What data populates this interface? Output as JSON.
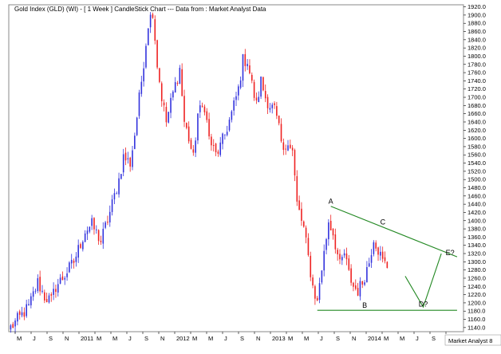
{
  "chart_data": {
    "type": "candlestick",
    "title": "Gold Index (GLD) (WI) -  [ 1 Week ] CandleStick Chart --- Data from : Market Analyst Data",
    "credit": "Market Analyst 8",
    "ylim": [
      1130,
      1925
    ],
    "y_ticks": [
      1140,
      1160,
      1180,
      1200,
      1220,
      1240,
      1260,
      1280,
      1300,
      1320,
      1340,
      1360,
      1380,
      1400,
      1420,
      1440,
      1460,
      1480,
      1500,
      1520,
      1540,
      1560,
      1580,
      1600,
      1620,
      1640,
      1660,
      1680,
      1700,
      1720,
      1740,
      1760,
      1780,
      1800,
      1820,
      1840,
      1860,
      1880,
      1900,
      1920
    ],
    "y_tick_labels": [
      "1140.0",
      "1160.0",
      "1180.0",
      "1200.0",
      "1220.0",
      "1240.0",
      "1260.0",
      "1280.0",
      "1300.0",
      "1320.0",
      "1340.0",
      "1360.0",
      "1380.0",
      "1400.0",
      "1420.0",
      "1440.0",
      "1460.0",
      "1480.0",
      "1500.0",
      "1520.0",
      "1540.0",
      "1560.0",
      "1580.0",
      "1600.0",
      "1620.0",
      "1640.0",
      "1660.0",
      "1680.0",
      "1700.0",
      "1720.0",
      "1740.0",
      "1760.0",
      "1780.0",
      "1800.0",
      "1820.0",
      "1840.0",
      "1860.0",
      "1880.0",
      "1900.0",
      "1920.0"
    ],
    "x_tick_labels": [
      "M",
      "J",
      "S",
      "N",
      "2011",
      "M",
      "M",
      "J",
      "S",
      "N",
      "2012",
      "M",
      "M",
      "J",
      "S",
      "N",
      "2013",
      "M",
      "M",
      "J",
      "S",
      "N",
      "2014",
      "M",
      "M",
      "J",
      "S",
      "N"
    ],
    "colors": {
      "up": "#3333dd",
      "down": "#ee2222",
      "trend": "#228822"
    },
    "price_path": [
      [
        0,
        1140
      ],
      [
        8,
        1190
      ],
      [
        12,
        1250
      ],
      [
        15,
        1215
      ],
      [
        18,
        1205
      ],
      [
        20,
        1240
      ],
      [
        23,
        1260
      ],
      [
        28,
        1300
      ],
      [
        33,
        1375
      ],
      [
        36,
        1390
      ],
      [
        40,
        1350
      ],
      [
        44,
        1420
      ],
      [
        48,
        1500
      ],
      [
        50,
        1555
      ],
      [
        53,
        1540
      ],
      [
        55,
        1610
      ],
      [
        58,
        1740
      ],
      [
        61,
        1880
      ],
      [
        63,
        1910
      ],
      [
        65,
        1780
      ],
      [
        67,
        1700
      ],
      [
        69,
        1640
      ],
      [
        72,
        1710
      ],
      [
        75,
        1770
      ],
      [
        77,
        1640
      ],
      [
        79,
        1600
      ],
      [
        81,
        1550
      ],
      [
        83,
        1660
      ],
      [
        86,
        1680
      ],
      [
        88,
        1600
      ],
      [
        91,
        1560
      ],
      [
        93,
        1580
      ],
      [
        95,
        1610
      ],
      [
        98,
        1660
      ],
      [
        101,
        1720
      ],
      [
        103,
        1790
      ],
      [
        105,
        1790
      ],
      [
        107,
        1730
      ],
      [
        109,
        1680
      ],
      [
        111,
        1740
      ],
      [
        113,
        1700
      ],
      [
        115,
        1680
      ],
      [
        117,
        1670
      ],
      [
        119,
        1620
      ],
      [
        121,
        1560
      ],
      [
        123,
        1600
      ],
      [
        125,
        1570
      ],
      [
        127,
        1440
      ],
      [
        130,
        1380
      ],
      [
        132,
        1310
      ],
      [
        134,
        1240
      ],
      [
        136,
        1200
      ],
      [
        137,
        1250
      ],
      [
        139,
        1320
      ],
      [
        141,
        1400
      ],
      [
        143,
        1370
      ],
      [
        146,
        1290
      ],
      [
        148,
        1320
      ],
      [
        150,
        1270
      ],
      [
        152,
        1240
      ],
      [
        154,
        1230
      ],
      [
        156,
        1250
      ],
      [
        159,
        1300
      ],
      [
        161,
        1360
      ],
      [
        163,
        1330
      ],
      [
        165,
        1300
      ],
      [
        167,
        1290
      ]
    ],
    "annotations": [
      {
        "label": "A",
        "x": 142,
        "y": 1435
      },
      {
        "label": "B",
        "x": 157,
        "y": 1182
      },
      {
        "label": "C",
        "x": 165,
        "y": 1385
      },
      {
        "label": "D?",
        "x": 182,
        "y": 1185
      },
      {
        "label": "E?",
        "x": 194,
        "y": 1310
      }
    ],
    "trendlines": [
      {
        "name": "upper",
        "from": [
          142,
          1435
        ],
        "to": [
          198,
          1312
        ]
      },
      {
        "name": "lower",
        "from": [
          136,
          1182
        ],
        "to": [
          198,
          1182
        ]
      },
      {
        "name": "projection",
        "points": [
          [
            175,
            1265
          ],
          [
            183,
            1190
          ],
          [
            191,
            1320
          ]
        ]
      }
    ]
  }
}
